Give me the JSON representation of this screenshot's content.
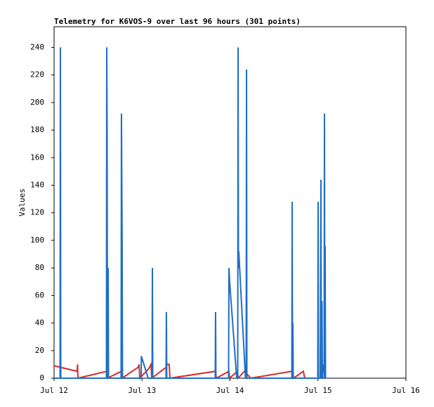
{
  "chart_data": {
    "type": "line",
    "title": "Telemetry for K6VOS-9 over last 96 hours (301 points)",
    "y_label": "Values",
    "xlim": [
      0,
      4
    ],
    "xticks": [
      {
        "value": 0,
        "label": "Jul 12"
      },
      {
        "value": 1,
        "label": "Jul 13"
      },
      {
        "value": 2,
        "label": "Jul 14"
      },
      {
        "value": 3,
        "label": "Jul 15"
      },
      {
        "value": 4,
        "label": "Jul 16"
      }
    ],
    "ylim": [
      0,
      255
    ],
    "yticks": [
      0,
      20,
      40,
      60,
      80,
      100,
      120,
      140,
      160,
      180,
      200,
      220,
      240
    ],
    "series": [
      {
        "color": "#d62a2a",
        "x": [
          0,
          0.263,
          0.267,
          0.271,
          0.599,
          0.607,
          0.766,
          0.774,
          0.958,
          0.966,
          0.974,
          1.078,
          1.102,
          1.11,
          1.277,
          1.285,
          1.309,
          1.317,
          1.836,
          1.844,
          1.988,
          1.996,
          2.084,
          2.092,
          2.164,
          2.236,
          2.707,
          2.723,
          2.834,
          2.85,
          3.042,
          3.058,
          3.074
        ],
        "values": [
          9,
          5,
          10,
          0,
          5,
          0,
          5,
          0,
          8,
          10,
          0,
          7,
          10,
          0,
          8,
          10,
          10,
          0,
          5,
          0,
          5,
          0,
          5,
          0,
          5,
          0,
          5,
          0,
          5,
          0,
          0,
          10,
          0
        ]
      },
      {
        "color": "#1f6fc5",
        "x": [
          0,
          0.068,
          0.072,
          0.076,
          0.595,
          0.599,
          0.603,
          0.607,
          0.615,
          0.619,
          0.762,
          0.766,
          0.774,
          0.778,
          0.99,
          0.992,
          1.07,
          1.114,
          1.118,
          1.122,
          1.273,
          1.277,
          1.281,
          1.832,
          1.836,
          1.84,
          1.984,
          1.988,
          1.996,
          2.076,
          2.088,
          2.092,
          2.096,
          2.1,
          2.108,
          2.176,
          2.184,
          2.188,
          2.192,
          2.703,
          2.707,
          2.711,
          2.715,
          2.719,
          2.998,
          3.002,
          3.006,
          3.026,
          3.03,
          3.034,
          3.038,
          3.046,
          3.05,
          3.07,
          3.074,
          3.078,
          3.082,
          3.086
        ],
        "values": [
          0,
          0,
          240,
          0,
          0,
          240,
          180,
          0,
          80,
          0,
          0,
          192,
          96,
          0,
          0,
          16,
          0,
          0,
          80,
          0,
          0,
          48,
          0,
          0,
          48,
          0,
          0,
          80,
          70,
          0,
          0,
          240,
          80,
          92,
          82,
          0,
          0,
          224,
          0,
          0,
          128,
          0,
          40,
          0,
          0,
          128,
          0,
          0,
          72,
          144,
          0,
          56,
          0,
          0,
          192,
          0,
          96,
          0
        ]
      }
    ]
  }
}
